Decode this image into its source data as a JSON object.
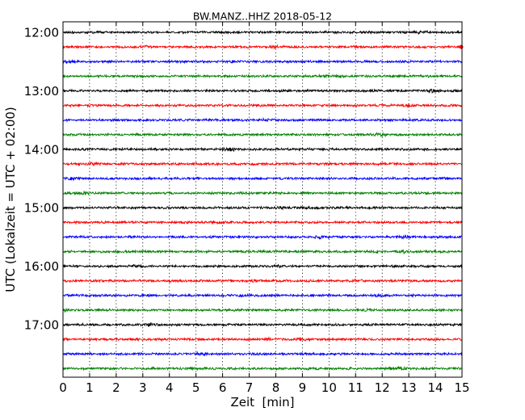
{
  "chart_data": {
    "type": "line",
    "title": "BW.MANZ..HHZ 2018-05-12",
    "xlabel": "Zeit  [min]",
    "ylabel": "UTC (Lokalzeit = UTC + 02:00)",
    "xlim": [
      0,
      15
    ],
    "x_ticks": [
      0,
      1,
      2,
      3,
      4,
      5,
      6,
      7,
      8,
      9,
      10,
      11,
      12,
      13,
      14,
      15
    ],
    "x_tick_labels": [
      "0",
      "1",
      "2",
      "3",
      "4",
      "5",
      "6",
      "7",
      "8",
      "9",
      "10",
      "11",
      "12",
      "13",
      "14",
      "15"
    ],
    "y_tick_labels": [
      "12:00",
      "13:00",
      "14:00",
      "15:00",
      "16:00",
      "17:00"
    ],
    "grid": {
      "x": true,
      "y": false,
      "style": "dotted"
    },
    "trace_colors": [
      "#000000",
      "#ff0000",
      "#0000ff",
      "#008000"
    ],
    "trace_start_times": [
      "12:00",
      "12:15",
      "12:30",
      "12:45",
      "13:00",
      "13:15",
      "13:30",
      "13:45",
      "14:00",
      "14:15",
      "14:30",
      "14:45",
      "15:00",
      "15:15",
      "15:30",
      "15:45",
      "16:00",
      "16:15",
      "16:30",
      "16:45",
      "17:00",
      "17:15",
      "17:30",
      "17:45"
    ],
    "trace_duration_min": 15
  }
}
